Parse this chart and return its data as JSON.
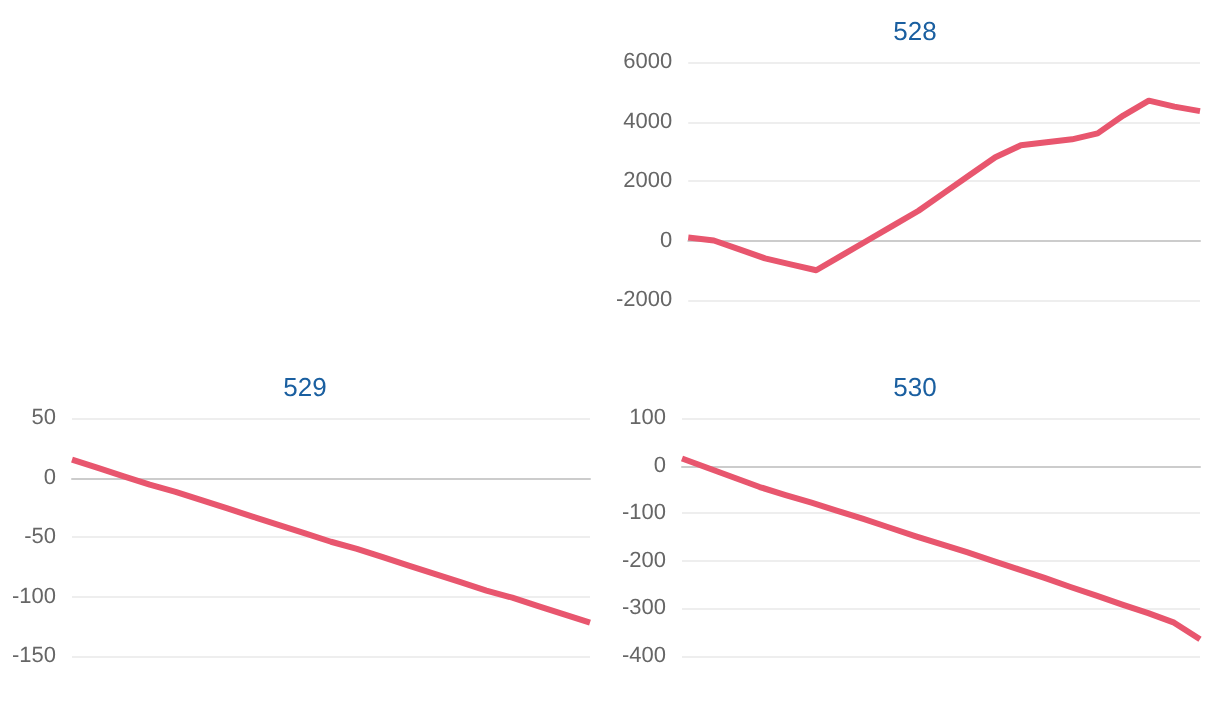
{
  "chart_data": [
    {
      "type": "line",
      "title": "528",
      "categories": [
        null,
        null,
        null,
        null,
        null,
        null,
        null,
        null,
        null,
        null,
        null,
        null,
        null,
        null,
        null,
        null,
        null,
        null,
        null,
        null,
        null
      ],
      "series": [
        {
          "color": "#e8566e",
          "values": [
            100,
            0,
            -300,
            -600,
            -800,
            -1000,
            -500,
            0,
            500,
            1000,
            1600,
            2200,
            2800,
            3200,
            3300,
            3400,
            3600,
            4200,
            4700,
            4500,
            4350
          ]
        }
      ],
      "ylim": [
        -2000,
        6000
      ],
      "yticks": [
        -2000,
        0,
        2000,
        4000,
        6000
      ],
      "grid": "y",
      "marker": "none"
    },
    {
      "type": "line",
      "title": "529",
      "categories": [
        null,
        null,
        null,
        null,
        null,
        null,
        null,
        null,
        null,
        null,
        null,
        null,
        null,
        null,
        null,
        null,
        null,
        null,
        null,
        null,
        null
      ],
      "series": [
        {
          "color": "#e8566e",
          "values": [
            15,
            8,
            1,
            -6,
            -12,
            -19,
            -26,
            -33,
            -40,
            -47,
            -54,
            -60,
            -67,
            -74,
            -81,
            -88,
            -95,
            -101,
            -108,
            -115,
            -122
          ]
        }
      ],
      "ylim": [
        -150,
        50
      ],
      "yticks": [
        -150,
        -100,
        -50,
        0,
        50
      ],
      "grid": "y",
      "marker": "none"
    },
    {
      "type": "line",
      "title": "530",
      "categories": [
        null,
        null,
        null,
        null,
        null,
        null,
        null,
        null,
        null,
        null,
        null,
        null,
        null,
        null,
        null,
        null,
        null,
        null,
        null,
        null,
        null
      ],
      "series": [
        {
          "color": "#e8566e",
          "values": [
            15,
            -5,
            -25,
            -45,
            -62,
            -78,
            -95,
            -112,
            -130,
            -148,
            -165,
            -182,
            -200,
            -218,
            -236,
            -255,
            -273,
            -292,
            -310,
            -330,
            -365
          ]
        }
      ],
      "ylim": [
        -400,
        100
      ],
      "yticks": [
        -400,
        -300,
        -200,
        -100,
        0,
        100
      ],
      "grid": "y",
      "marker": "none"
    }
  ]
}
